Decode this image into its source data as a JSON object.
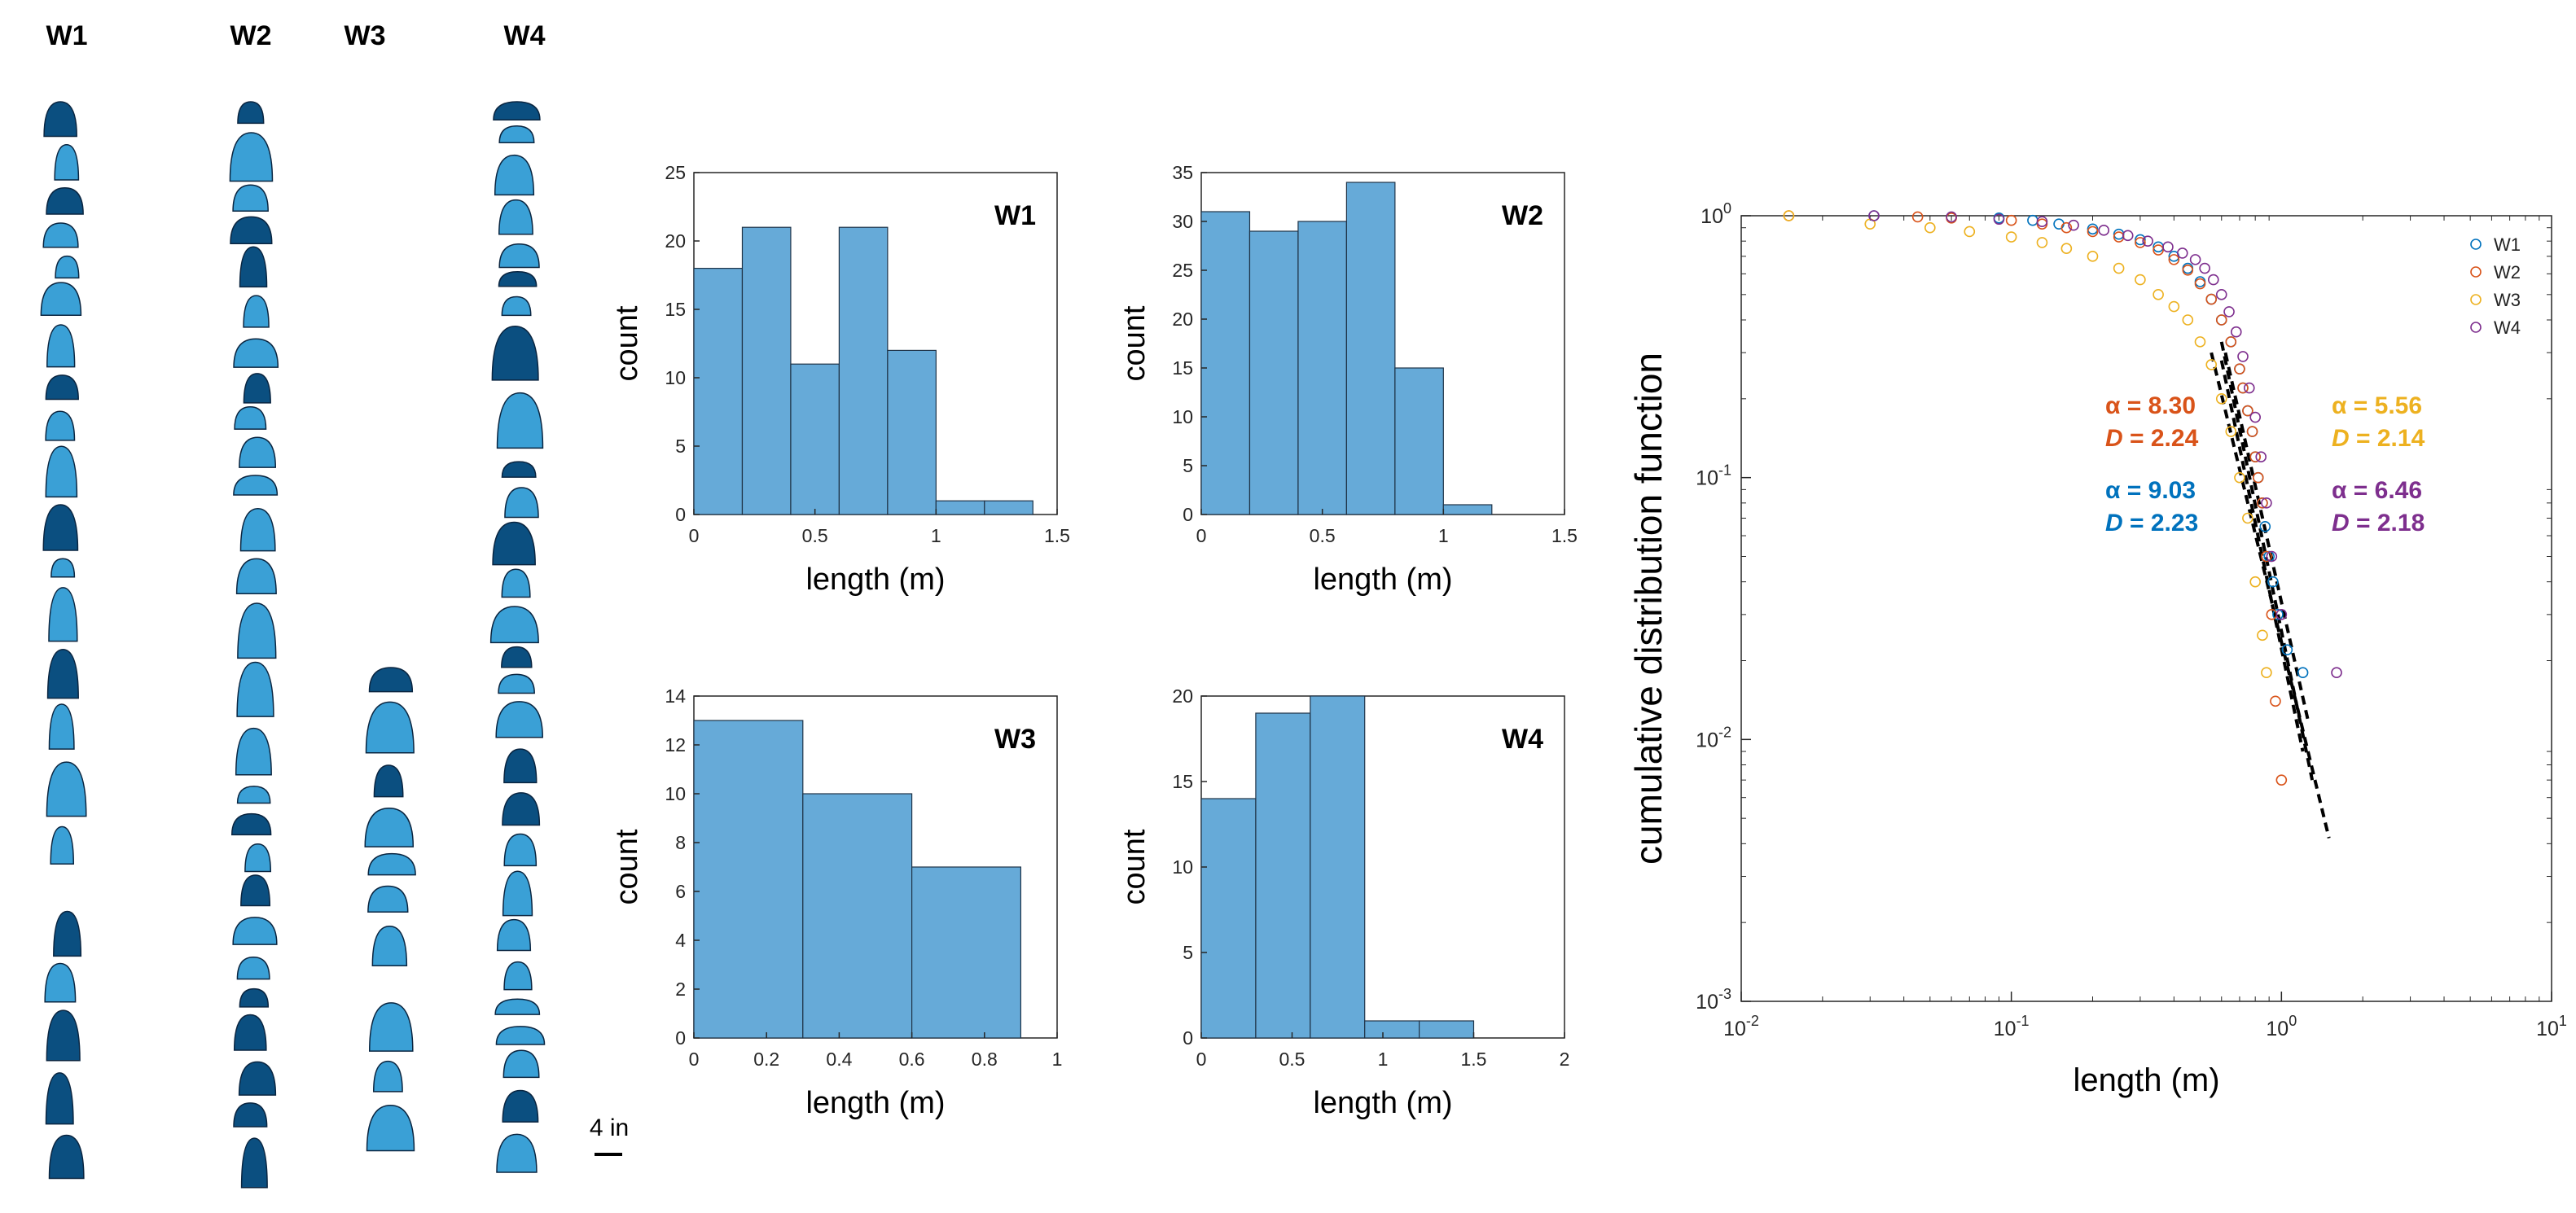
{
  "colors": {
    "bar_fill": "#66aad8",
    "bar_edge": "#1f3347",
    "axis": "#262626",
    "W1": "#0072bd",
    "W2": "#d95319",
    "W3": "#edb120",
    "W4": "#7e2f8e",
    "fracture_light": "#3aa0d6",
    "fracture_dark": "#0b4f80",
    "fracture_edge": "#0a2540"
  },
  "wells": {
    "labels": [
      "W1",
      "W2",
      "W3",
      "W4"
    ],
    "scale_label": "4 in",
    "icons": "fracture-ellipse-icons"
  },
  "chart_data": [
    {
      "type": "bar",
      "panel": "W1",
      "title": "W1",
      "xlabel": "length (m)",
      "ylabel": "count",
      "bin_edges": [
        0,
        0.2,
        0.4,
        0.6,
        0.8,
        1.0,
        1.2,
        1.4
      ],
      "values": [
        18,
        21,
        11,
        21,
        12,
        1,
        1
      ],
      "xlim": [
        0,
        1.5
      ],
      "ylim": [
        0,
        25
      ],
      "xticks": [
        0,
        0.5,
        1,
        1.5
      ],
      "xtick_labels": [
        "0",
        "0.5",
        "1",
        "1.5"
      ],
      "yticks": [
        0,
        5,
        10,
        15,
        20,
        25
      ],
      "ytick_labels": [
        "0",
        "5",
        "10",
        "15",
        "20",
        "25"
      ]
    },
    {
      "type": "bar",
      "panel": "W2",
      "title": "W2",
      "xlabel": "length (m)",
      "ylabel": "count",
      "bin_edges": [
        0,
        0.2,
        0.4,
        0.6,
        0.8,
        1.0,
        1.2
      ],
      "values": [
        31,
        29,
        30,
        34,
        15,
        1
      ],
      "xlim": [
        0,
        1.5
      ],
      "ylim": [
        0,
        35
      ],
      "xticks": [
        0,
        0.5,
        1,
        1.5
      ],
      "xtick_labels": [
        "0",
        "0.5",
        "1",
        "1.5"
      ],
      "yticks": [
        0,
        5,
        10,
        15,
        20,
        25,
        30,
        35
      ],
      "ytick_labels": [
        "0",
        "5",
        "10",
        "15",
        "20",
        "25",
        "30",
        "35"
      ]
    },
    {
      "type": "bar",
      "panel": "W3",
      "title": "W3",
      "xlabel": "length (m)",
      "ylabel": "count",
      "bin_edges": [
        0,
        0.3,
        0.6,
        0.9
      ],
      "values": [
        13,
        10,
        7
      ],
      "xlim": [
        0,
        1
      ],
      "ylim": [
        0,
        14
      ],
      "xticks": [
        0,
        0.2,
        0.4,
        0.6,
        0.8,
        1
      ],
      "xtick_labels": [
        "0",
        "0.2",
        "0.4",
        "0.6",
        "0.8",
        "1"
      ],
      "yticks": [
        0,
        2,
        4,
        6,
        8,
        10,
        12,
        14
      ],
      "ytick_labels": [
        "0",
        "2",
        "4",
        "6",
        "8",
        "10",
        "12",
        "14"
      ]
    },
    {
      "type": "bar",
      "panel": "W4",
      "title": "W4",
      "xlabel": "length (m)",
      "ylabel": "count",
      "bin_edges": [
        0,
        0.3,
        0.6,
        0.9,
        1.2,
        1.5
      ],
      "values": [
        14,
        19,
        20,
        1,
        1
      ],
      "xlim": [
        0,
        2
      ],
      "ylim": [
        0,
        20
      ],
      "xticks": [
        0,
        0.5,
        1,
        1.5,
        2
      ],
      "xtick_labels": [
        "0",
        "0.5",
        "1",
        "1.5",
        "2"
      ],
      "yticks": [
        0,
        5,
        10,
        15,
        20
      ],
      "ytick_labels": [
        "0",
        "5",
        "10",
        "15",
        "20"
      ]
    },
    {
      "type": "scatter",
      "panel": "cdf",
      "xlabel": "length (m)",
      "ylabel": "cumulative distribution function",
      "xscale": "log",
      "yscale": "log",
      "xlim": [
        0.01,
        10
      ],
      "ylim": [
        0.001,
        1
      ],
      "xticks": [
        0.01,
        0.1,
        1,
        10
      ],
      "xtick_labels": [
        {
          "base": "10",
          "exp": "-2"
        },
        {
          "base": "10",
          "exp": "-1"
        },
        {
          "base": "10",
          "exp": "0"
        },
        {
          "base": "10",
          "exp": "1"
        }
      ],
      "yticks": [
        0.001,
        0.01,
        0.1,
        1
      ],
      "ytick_labels": [
        {
          "base": "10",
          "exp": "-3"
        },
        {
          "base": "10",
          "exp": "-2"
        },
        {
          "base": "10",
          "exp": "-1"
        },
        {
          "base": "10",
          "exp": "0"
        }
      ],
      "grid": false,
      "legend_position": "top-right",
      "marker": "open-circle",
      "series": [
        {
          "name": "W1",
          "x": [
            0.031,
            0.09,
            0.12,
            0.15,
            0.2,
            0.25,
            0.3,
            0.35,
            0.4,
            0.45,
            0.5,
            0.55,
            0.6,
            0.65,
            0.7,
            0.72,
            0.75,
            0.78,
            0.8,
            0.82,
            0.85,
            0.87,
            0.9,
            0.93,
            0.97,
            1.05,
            1.2
          ],
          "y": [
            1.0,
            0.98,
            0.96,
            0.93,
            0.89,
            0.85,
            0.81,
            0.76,
            0.7,
            0.63,
            0.56,
            0.48,
            0.4,
            0.33,
            0.26,
            0.22,
            0.18,
            0.15,
            0.12,
            0.1,
            0.08,
            0.065,
            0.05,
            0.04,
            0.03,
            0.022,
            0.018
          ]
        },
        {
          "name": "W2",
          "x": [
            0.015,
            0.045,
            0.06,
            0.1,
            0.13,
            0.16,
            0.2,
            0.25,
            0.3,
            0.35,
            0.4,
            0.45,
            0.5,
            0.55,
            0.6,
            0.65,
            0.7,
            0.72,
            0.75,
            0.78,
            0.8,
            0.82,
            0.85,
            0.88,
            0.92,
            0.95,
            1.0
          ],
          "y": [
            1.0,
            0.99,
            0.98,
            0.96,
            0.93,
            0.9,
            0.87,
            0.83,
            0.79,
            0.74,
            0.68,
            0.62,
            0.55,
            0.48,
            0.4,
            0.33,
            0.26,
            0.22,
            0.18,
            0.15,
            0.12,
            0.1,
            0.08,
            0.05,
            0.03,
            0.014,
            0.007
          ]
        },
        {
          "name": "W3",
          "x": [
            0.015,
            0.03,
            0.05,
            0.07,
            0.1,
            0.13,
            0.16,
            0.2,
            0.25,
            0.3,
            0.35,
            0.4,
            0.45,
            0.5,
            0.55,
            0.6,
            0.65,
            0.7,
            0.75,
            0.8,
            0.85,
            0.88
          ],
          "y": [
            1.0,
            0.93,
            0.9,
            0.87,
            0.83,
            0.79,
            0.75,
            0.7,
            0.63,
            0.57,
            0.5,
            0.45,
            0.4,
            0.33,
            0.27,
            0.2,
            0.15,
            0.1,
            0.07,
            0.04,
            0.025,
            0.018
          ]
        },
        {
          "name": "W4",
          "x": [
            0.031,
            0.06,
            0.09,
            0.13,
            0.17,
            0.22,
            0.27,
            0.32,
            0.38,
            0.43,
            0.48,
            0.52,
            0.56,
            0.6,
            0.64,
            0.68,
            0.72,
            0.76,
            0.8,
            0.84,
            0.88,
            0.92,
            1.0,
            1.6
          ],
          "y": [
            1.0,
            0.99,
            0.97,
            0.95,
            0.92,
            0.88,
            0.84,
            0.8,
            0.76,
            0.72,
            0.68,
            0.63,
            0.57,
            0.5,
            0.43,
            0.36,
            0.29,
            0.22,
            0.17,
            0.12,
            0.08,
            0.05,
            0.03,
            0.018
          ]
        }
      ],
      "fit_lines": [
        {
          "name": "W1",
          "x": [
            0.6,
            1.2
          ],
          "y": [
            0.28,
            0.009
          ]
        },
        {
          "name": "W2",
          "x": [
            0.6,
            1.3
          ],
          "y": [
            0.33,
            0.007
          ]
        },
        {
          "name": "W3",
          "x": [
            0.55,
            1.5
          ],
          "y": [
            0.3,
            0.0042
          ]
        },
        {
          "name": "W4",
          "x": [
            0.62,
            1.25
          ],
          "y": [
            0.3,
            0.012
          ]
        }
      ],
      "annotations": [
        {
          "series": "W2",
          "alpha": "α = 8.30",
          "d_label": "D",
          "d_value": "= 2.24"
        },
        {
          "series": "W3",
          "alpha": "α = 5.56",
          "d_label": "D",
          "d_value": "= 2.14"
        },
        {
          "series": "W1",
          "alpha": "α = 9.03",
          "d_label": "D",
          "d_value": "= 2.23"
        },
        {
          "series": "W4",
          "alpha": "α = 6.46",
          "d_label": "D",
          "d_value": "= 2.18"
        }
      ]
    }
  ]
}
